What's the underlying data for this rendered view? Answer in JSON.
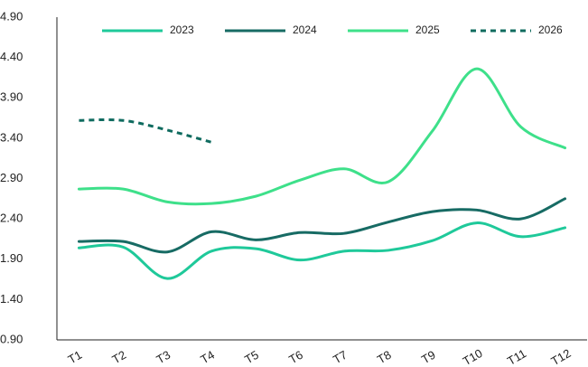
{
  "chart_data": {
    "type": "line",
    "categories": [
      "T1",
      "T2",
      "T3",
      "T4",
      "T5",
      "T6",
      "T7",
      "T8",
      "T9",
      "T10",
      "T11",
      "T12"
    ],
    "series": [
      {
        "name": "2023",
        "color": "#1fc99a",
        "dashed": false,
        "values": [
          2.04,
          2.05,
          1.66,
          2.0,
          2.03,
          1.89,
          2.0,
          2.01,
          2.13,
          2.35,
          2.18,
          2.29
        ]
      },
      {
        "name": "2024",
        "color": "#176b64",
        "dashed": false,
        "values": [
          2.12,
          2.12,
          1.99,
          2.24,
          2.14,
          2.23,
          2.22,
          2.36,
          2.49,
          2.51,
          2.4,
          2.65
        ]
      },
      {
        "name": "2025",
        "color": "#3ee08a",
        "dashed": false,
        "values": [
          2.77,
          2.77,
          2.61,
          2.59,
          2.68,
          2.88,
          3.02,
          2.86,
          3.49,
          4.26,
          3.54,
          3.28
        ]
      },
      {
        "name": "2026",
        "color": "#0f6b5f",
        "dashed": true,
        "values": [
          3.62,
          3.62,
          3.5,
          3.35,
          null,
          null,
          null,
          null,
          null,
          null,
          null,
          null
        ]
      }
    ],
    "ylim": [
      0.9,
      4.9
    ],
    "yticks": [
      {
        "value": 0.9,
        "label": "0.90"
      },
      {
        "value": 1.4,
        "label": "1.40"
      },
      {
        "value": 1.9,
        "label": "1.90"
      },
      {
        "value": 2.4,
        "label": "2.40"
      },
      {
        "value": 2.9,
        "label": "2.90"
      },
      {
        "value": 3.4,
        "label": "3.40"
      },
      {
        "value": 3.9,
        "label": "3.90"
      },
      {
        "value": 4.4,
        "label": "4.40"
      },
      {
        "value": 4.9,
        "label": "4.90"
      }
    ],
    "grid": false,
    "smooth": true,
    "legend": "top"
  }
}
